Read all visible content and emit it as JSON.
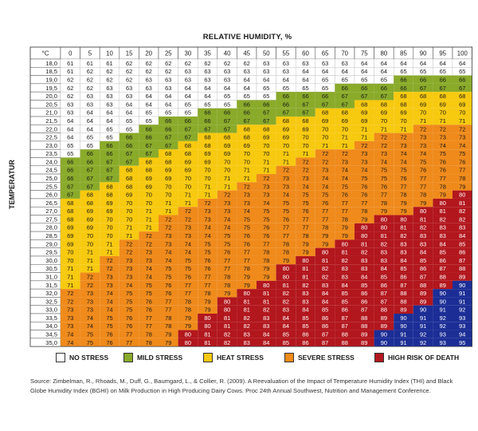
{
  "chart_data": {
    "type": "heatmap",
    "xlabel": "RELATIVE HUMIDITY, %",
    "ylabel": "TEMPERATUR",
    "corner_label": "°C",
    "x": [
      "0",
      "5",
      "10",
      "15",
      "20",
      "25",
      "30",
      "35",
      "40",
      "45",
      "50",
      "55",
      "60",
      "65",
      "70",
      "75",
      "80",
      "85",
      "90",
      "95",
      "100"
    ],
    "y": [
      "18,0",
      "18,5",
      "19,0",
      "19,5",
      "20,0",
      "20,5",
      "21,0",
      "21,5",
      "22,0",
      "22,5",
      "23,0",
      "23,5",
      "24,0",
      "24,5",
      "25,0",
      "25,5",
      "26,0",
      "26,5",
      "27,0",
      "27,5",
      "28,0",
      "28,5",
      "29,0",
      "29,5",
      "30,0",
      "30,5",
      "31,0",
      "31,5",
      "32,0",
      "32,5",
      "33,0",
      "33,5",
      "34,0",
      "34,5",
      "35,0"
    ],
    "values": [
      [
        61,
        61,
        61,
        62,
        62,
        62,
        62,
        62,
        62,
        62,
        63,
        63,
        63,
        63,
        63,
        64,
        64,
        64,
        64,
        64,
        64
      ],
      [
        61,
        62,
        62,
        62,
        62,
        62,
        63,
        63,
        63,
        63,
        63,
        63,
        64,
        64,
        64,
        64,
        64,
        65,
        65,
        65,
        65
      ],
      [
        62,
        62,
        62,
        62,
        63,
        63,
        63,
        63,
        63,
        64,
        64,
        64,
        64,
        65,
        65,
        65,
        65,
        66,
        66,
        66,
        66
      ],
      [
        62,
        62,
        63,
        63,
        63,
        63,
        64,
        64,
        64,
        64,
        65,
        65,
        65,
        65,
        66,
        66,
        66,
        66,
        67,
        67,
        67
      ],
      [
        62,
        63,
        63,
        63,
        64,
        64,
        64,
        64,
        65,
        65,
        65,
        66,
        66,
        66,
        67,
        67,
        67,
        68,
        68,
        68,
        68
      ],
      [
        63,
        63,
        63,
        64,
        64,
        64,
        65,
        65,
        65,
        66,
        66,
        66,
        67,
        67,
        67,
        68,
        68,
        68,
        69,
        69,
        69
      ],
      [
        63,
        64,
        64,
        64,
        65,
        65,
        65,
        66,
        66,
        66,
        67,
        67,
        67,
        68,
        68,
        69,
        69,
        69,
        70,
        70,
        70
      ],
      [
        64,
        64,
        64,
        65,
        65,
        66,
        66,
        66,
        67,
        67,
        67,
        68,
        68,
        69,
        69,
        69,
        70,
        70,
        71,
        71,
        71
      ],
      [
        64,
        64,
        65,
        65,
        66,
        66,
        67,
        67,
        67,
        68,
        68,
        69,
        69,
        70,
        70,
        71,
        71,
        71,
        72,
        72,
        72
      ],
      [
        64,
        65,
        65,
        66,
        66,
        67,
        67,
        68,
        68,
        68,
        69,
        69,
        70,
        70,
        71,
        71,
        72,
        72,
        73,
        73,
        73
      ],
      [
        65,
        65,
        66,
        66,
        67,
        67,
        68,
        68,
        69,
        69,
        70,
        70,
        70,
        71,
        71,
        72,
        72,
        73,
        73,
        74,
        74
      ],
      [
        65,
        66,
        66,
        67,
        67,
        68,
        68,
        69,
        69,
        70,
        70,
        71,
        71,
        72,
        72,
        73,
        73,
        74,
        74,
        75,
        75
      ],
      [
        66,
        66,
        67,
        67,
        68,
        68,
        69,
        69,
        70,
        70,
        71,
        71,
        72,
        72,
        73,
        73,
        74,
        74,
        75,
        76,
        76
      ],
      [
        66,
        67,
        67,
        68,
        68,
        69,
        69,
        70,
        70,
        71,
        71,
        72,
        72,
        73,
        74,
        74,
        75,
        75,
        76,
        76,
        77
      ],
      [
        66,
        67,
        67,
        68,
        69,
        69,
        70,
        70,
        71,
        71,
        72,
        73,
        73,
        74,
        74,
        75,
        75,
        76,
        77,
        77,
        78
      ],
      [
        67,
        67,
        68,
        68,
        69,
        70,
        70,
        71,
        71,
        72,
        73,
        73,
        74,
        74,
        75,
        76,
        76,
        77,
        77,
        78,
        79
      ],
      [
        67,
        68,
        68,
        69,
        70,
        70,
        71,
        71,
        72,
        73,
        73,
        74,
        75,
        75,
        76,
        76,
        77,
        78,
        78,
        79,
        80
      ],
      [
        68,
        68,
        69,
        70,
        70,
        71,
        71,
        72,
        73,
        73,
        74,
        75,
        75,
        76,
        77,
        77,
        78,
        79,
        79,
        80,
        81
      ],
      [
        68,
        69,
        69,
        70,
        71,
        71,
        72,
        73,
        73,
        74,
        75,
        75,
        76,
        77,
        77,
        78,
        79,
        79,
        80,
        81,
        82
      ],
      [
        68,
        69,
        70,
        70,
        71,
        72,
        72,
        73,
        74,
        75,
        75,
        76,
        77,
        77,
        78,
        79,
        80,
        80,
        81,
        82,
        82
      ],
      [
        69,
        69,
        70,
        71,
        71,
        72,
        73,
        74,
        74,
        75,
        76,
        77,
        77,
        78,
        79,
        80,
        80,
        81,
        82,
        83,
        83
      ],
      [
        69,
        70,
        70,
        71,
        72,
        73,
        73,
        74,
        75,
        76,
        76,
        77,
        78,
        79,
        79,
        80,
        81,
        82,
        83,
        83,
        84
      ],
      [
        69,
        70,
        71,
        72,
        72,
        73,
        74,
        75,
        75,
        76,
        77,
        78,
        79,
        79,
        80,
        81,
        82,
        83,
        83,
        84,
        85
      ],
      [
        70,
        71,
        71,
        72,
        73,
        74,
        74,
        75,
        76,
        77,
        78,
        78,
        79,
        80,
        81,
        82,
        83,
        83,
        84,
        85,
        86
      ],
      [
        70,
        71,
        72,
        73,
        73,
        74,
        75,
        76,
        77,
        77,
        78,
        79,
        80,
        81,
        82,
        83,
        83,
        84,
        85,
        86,
        87
      ],
      [
        71,
        71,
        72,
        73,
        74,
        75,
        75,
        76,
        77,
        78,
        79,
        80,
        81,
        82,
        83,
        83,
        84,
        85,
        86,
        87,
        88
      ],
      [
        71,
        72,
        73,
        73,
        74,
        75,
        76,
        77,
        78,
        79,
        79,
        80,
        81,
        82,
        83,
        84,
        85,
        86,
        87,
        88,
        89
      ],
      [
        71,
        72,
        73,
        74,
        75,
        76,
        77,
        77,
        78,
        79,
        80,
        81,
        82,
        83,
        84,
        85,
        86,
        87,
        88,
        89,
        90
      ],
      [
        72,
        73,
        74,
        75,
        75,
        76,
        77,
        78,
        79,
        80,
        81,
        82,
        83,
        84,
        85,
        86,
        87,
        88,
        89,
        90,
        91
      ],
      [
        72,
        73,
        74,
        75,
        76,
        77,
        78,
        79,
        80,
        81,
        81,
        82,
        83,
        84,
        85,
        86,
        87,
        88,
        89,
        90,
        91
      ],
      [
        73,
        73,
        74,
        75,
        76,
        77,
        78,
        79,
        80,
        81,
        82,
        83,
        84,
        85,
        86,
        87,
        88,
        89,
        90,
        91,
        92
      ],
      [
        73,
        74,
        75,
        76,
        77,
        78,
        79,
        80,
        81,
        82,
        83,
        84,
        85,
        86,
        87,
        88,
        89,
        90,
        91,
        92,
        93
      ],
      [
        73,
        74,
        75,
        76,
        77,
        78,
        79,
        80,
        81,
        82,
        83,
        84,
        85,
        86,
        87,
        88,
        89,
        90,
        91,
        92,
        93
      ],
      [
        74,
        75,
        76,
        77,
        78,
        79,
        80,
        81,
        82,
        83,
        84,
        85,
        86,
        87,
        88,
        89,
        90,
        91,
        92,
        93,
        94
      ],
      [
        74,
        75,
        76,
        77,
        78,
        79,
        80,
        81,
        82,
        83,
        84,
        85,
        86,
        87,
        88,
        89,
        90,
        91,
        92,
        93,
        95
      ]
    ],
    "categories": [
      {
        "label": "NO STRESS",
        "color": "#ffffff",
        "max": 65
      },
      {
        "label": "MILD STRESS",
        "color": "#8aaa2a",
        "max": 67
      },
      {
        "label": "HEAT STRESS",
        "color": "#f7c90f",
        "max": 71
      },
      {
        "label": "SEVERE STRESS",
        "color": "#ef8a1b",
        "max": 79
      },
      {
        "label": "HIGH RISK OF DEATH",
        "color": "#b2171d",
        "max": 89
      },
      {
        "label": "",
        "color": "#1c2e96",
        "max": 100
      }
    ]
  },
  "source": "Source: Zimbelman, R., Rhoads, M., Duff, G., Baumgard, L., & Collier, R. (2009). A Reevaluation of the Impact of Temperature Humidity Index (THI) and Black Globe Humidity Index (BGHI) on Milk Production in High Producing Dairy Cows. Proc 24th Annual Southwest, Nutrition and Management Conference."
}
